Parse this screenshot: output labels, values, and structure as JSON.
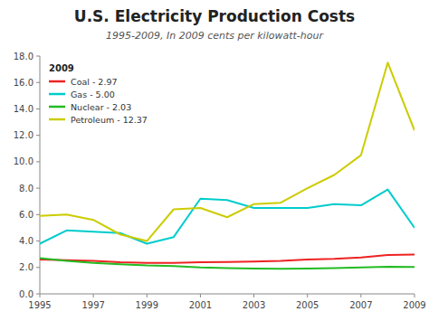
{
  "chart_data": {
    "type": "line",
    "title": "U.S. Electricity Production Costs",
    "subtitle": "1995-2009, In 2009 cents per kilowatt-hour",
    "legend_title": "2009",
    "legend": "upper left",
    "grid": false,
    "x": [
      1995,
      1996,
      1997,
      1998,
      1999,
      2000,
      2001,
      2002,
      2003,
      2004,
      2005,
      2006,
      2007,
      2008,
      2009
    ],
    "xlim": [
      1995,
      2009
    ],
    "xticks": [
      1995,
      1997,
      1999,
      2001,
      2003,
      2005,
      2007,
      2009
    ],
    "ylim": [
      0.0,
      18.0
    ],
    "yticks": [
      {
        "value": 0,
        "label": "0.0"
      },
      {
        "value": 2,
        "label": "2.0"
      },
      {
        "value": 4,
        "label": "4.0"
      },
      {
        "value": 6,
        "label": "6.0"
      },
      {
        "value": 8,
        "label": "8.0"
      },
      {
        "value": 10,
        "label": "10.0"
      },
      {
        "value": 12,
        "label": "12.0"
      },
      {
        "value": 14,
        "label": "14.0"
      },
      {
        "value": 16,
        "label": "16.0"
      },
      {
        "value": 18,
        "label": "18.0"
      }
    ],
    "series": [
      {
        "name": "Coal - 2.97",
        "color": "#ee2222",
        "values": [
          2.6,
          2.55,
          2.5,
          2.4,
          2.35,
          2.35,
          2.4,
          2.42,
          2.45,
          2.5,
          2.6,
          2.65,
          2.75,
          2.95,
          2.97
        ]
      },
      {
        "name": "Gas - 5.00",
        "color": "#00cccc",
        "values": [
          3.8,
          4.8,
          4.7,
          4.6,
          3.8,
          4.3,
          7.2,
          7.1,
          6.5,
          6.5,
          6.5,
          6.8,
          6.7,
          7.9,
          5.0
        ]
      },
      {
        "name": "Nuclear - 2.03",
        "color": "#22bb22",
        "values": [
          2.7,
          2.5,
          2.35,
          2.25,
          2.15,
          2.1,
          2.0,
          1.95,
          1.92,
          1.9,
          1.92,
          1.95,
          2.0,
          2.05,
          2.03
        ]
      },
      {
        "name": "Petroleum - 12.37",
        "color": "#cccc00",
        "values": [
          5.9,
          6.0,
          5.6,
          4.5,
          4.0,
          6.4,
          6.5,
          5.8,
          6.8,
          6.9,
          8.0,
          9.0,
          10.5,
          17.5,
          12.37
        ]
      }
    ]
  }
}
